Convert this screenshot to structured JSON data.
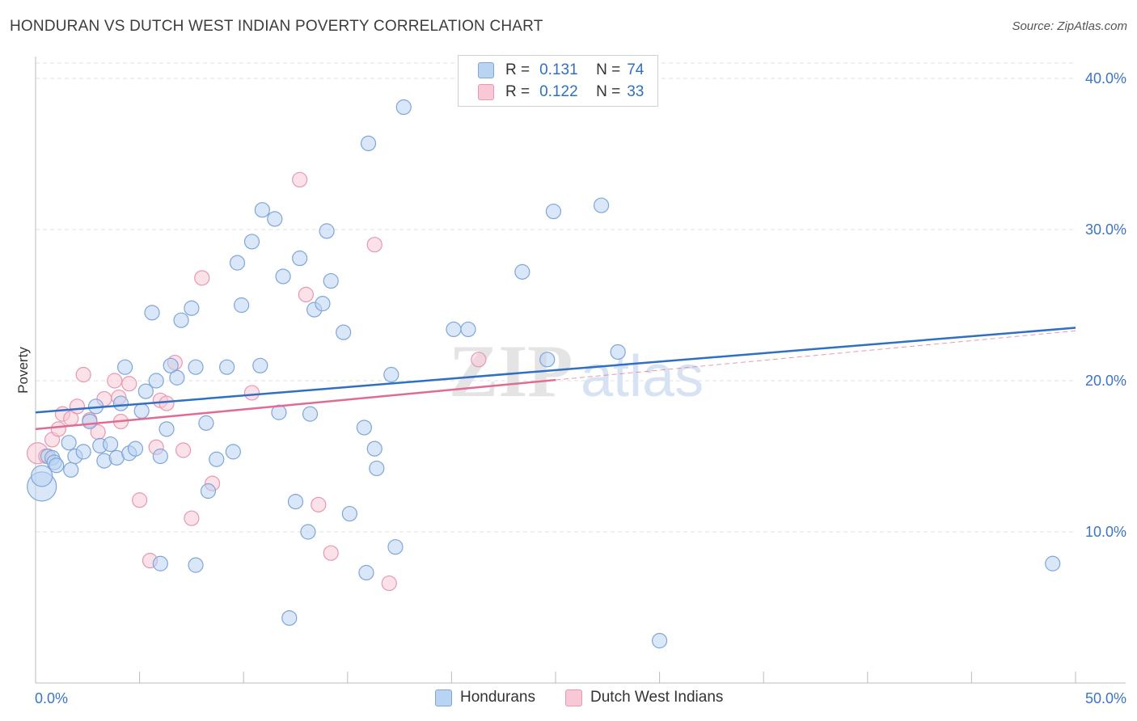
{
  "chart_data": {
    "type": "scatter",
    "title": "HONDURAN VS DUTCH WEST INDIAN POVERTY CORRELATION CHART",
    "source": "Source: ZipAtlas.com",
    "watermark": "ZIPatlas",
    "ylabel": "Poverty",
    "xlim": [
      0,
      50
    ],
    "ylim": [
      0,
      42
    ],
    "yticks": [
      10,
      20,
      30,
      40
    ],
    "ytick_labels": [
      "10.0%",
      "20.0%",
      "30.0%",
      "40.0%"
    ],
    "x_labels": [
      "0.0%",
      "50.0%"
    ],
    "legend": {
      "r_label": "R =",
      "n_label": "N =",
      "series": [
        {
          "r": "0.131",
          "n": "74"
        },
        {
          "r": "0.122",
          "n": "33"
        }
      ]
    },
    "series": [
      {
        "name": "Hondurans",
        "color": "#7fa6d8",
        "fill": "#b9d3f2",
        "trend": {
          "x": [
            0,
            50
          ],
          "y": [
            17.9,
            23.5
          ],
          "solid_to": 50
        },
        "points": [
          [
            0.3,
            13.0
          ],
          [
            0.3,
            13.7
          ],
          [
            0.6,
            15.0
          ],
          [
            0.8,
            14.9
          ],
          [
            0.9,
            14.6
          ],
          [
            1.0,
            14.4
          ],
          [
            1.6,
            15.9
          ],
          [
            1.7,
            14.1
          ],
          [
            1.9,
            15.0
          ],
          [
            2.3,
            15.3
          ],
          [
            2.6,
            17.3
          ],
          [
            2.9,
            18.3
          ],
          [
            3.1,
            15.7
          ],
          [
            3.3,
            14.7
          ],
          [
            3.6,
            15.8
          ],
          [
            3.9,
            14.9
          ],
          [
            4.1,
            18.5
          ],
          [
            4.3,
            20.9
          ],
          [
            4.5,
            15.2
          ],
          [
            4.8,
            15.5
          ],
          [
            5.1,
            18.0
          ],
          [
            5.3,
            19.3
          ],
          [
            5.6,
            24.5
          ],
          [
            5.8,
            20.0
          ],
          [
            6.0,
            15.0
          ],
          [
            6.3,
            16.8
          ],
          [
            6.5,
            21.0
          ],
          [
            6.8,
            20.2
          ],
          [
            7.0,
            24.0
          ],
          [
            7.5,
            24.8
          ],
          [
            7.7,
            20.9
          ],
          [
            8.2,
            17.2
          ],
          [
            8.3,
            12.7
          ],
          [
            8.7,
            14.8
          ],
          [
            9.2,
            20.9
          ],
          [
            9.5,
            15.3
          ],
          [
            9.7,
            27.8
          ],
          [
            9.9,
            25.0
          ],
          [
            10.4,
            29.2
          ],
          [
            10.8,
            21.0
          ],
          [
            10.9,
            31.3
          ],
          [
            11.5,
            30.7
          ],
          [
            11.7,
            17.9
          ],
          [
            11.9,
            26.9
          ],
          [
            12.2,
            4.3
          ],
          [
            12.5,
            12.0
          ],
          [
            12.7,
            28.1
          ],
          [
            13.1,
            10.0
          ],
          [
            13.2,
            17.8
          ],
          [
            13.4,
            24.7
          ],
          [
            13.8,
            25.1
          ],
          [
            14.0,
            29.9
          ],
          [
            14.2,
            26.6
          ],
          [
            14.8,
            23.2
          ],
          [
            15.1,
            11.2
          ],
          [
            15.8,
            16.9
          ],
          [
            15.9,
            7.3
          ],
          [
            16.0,
            35.7
          ],
          [
            16.3,
            15.5
          ],
          [
            16.4,
            14.2
          ],
          [
            17.1,
            20.4
          ],
          [
            17.3,
            9.0
          ],
          [
            17.7,
            38.1
          ],
          [
            20.1,
            23.4
          ],
          [
            20.8,
            23.4
          ],
          [
            23.4,
            27.2
          ],
          [
            24.6,
            21.4
          ],
          [
            24.9,
            31.2
          ],
          [
            27.2,
            31.6
          ],
          [
            28.0,
            21.9
          ],
          [
            30.0,
            2.8
          ],
          [
            48.9,
            7.9
          ],
          [
            6.0,
            7.9
          ],
          [
            7.7,
            7.8
          ]
        ]
      },
      {
        "name": "Dutch West Indians",
        "color": "#e898b0",
        "fill": "#f8c8d6",
        "trend": {
          "x": [
            0,
            50
          ],
          "y": [
            16.8,
            23.3
          ],
          "solid_to": 25
        },
        "points": [
          [
            0.1,
            15.2
          ],
          [
            0.5,
            15.0
          ],
          [
            0.8,
            16.1
          ],
          [
            1.1,
            16.8
          ],
          [
            1.3,
            17.8
          ],
          [
            1.7,
            17.5
          ],
          [
            2.0,
            18.3
          ],
          [
            2.3,
            20.4
          ],
          [
            2.6,
            17.4
          ],
          [
            3.0,
            16.6
          ],
          [
            3.3,
            18.8
          ],
          [
            3.8,
            20.0
          ],
          [
            4.0,
            18.9
          ],
          [
            4.1,
            17.3
          ],
          [
            4.5,
            19.8
          ],
          [
            5.0,
            12.1
          ],
          [
            5.5,
            8.1
          ],
          [
            5.8,
            15.6
          ],
          [
            6.0,
            18.7
          ],
          [
            6.3,
            18.5
          ],
          [
            6.7,
            21.2
          ],
          [
            7.1,
            15.4
          ],
          [
            7.5,
            10.9
          ],
          [
            8.0,
            26.8
          ],
          [
            8.5,
            13.2
          ],
          [
            10.4,
            19.2
          ],
          [
            12.7,
            33.3
          ],
          [
            13.0,
            25.7
          ],
          [
            13.6,
            11.8
          ],
          [
            14.2,
            8.6
          ],
          [
            16.3,
            29.0
          ],
          [
            17.0,
            6.6
          ],
          [
            21.3,
            21.4
          ]
        ]
      }
    ],
    "legend_bottom": [
      "Hondurans",
      "Dutch West Indians"
    ]
  }
}
